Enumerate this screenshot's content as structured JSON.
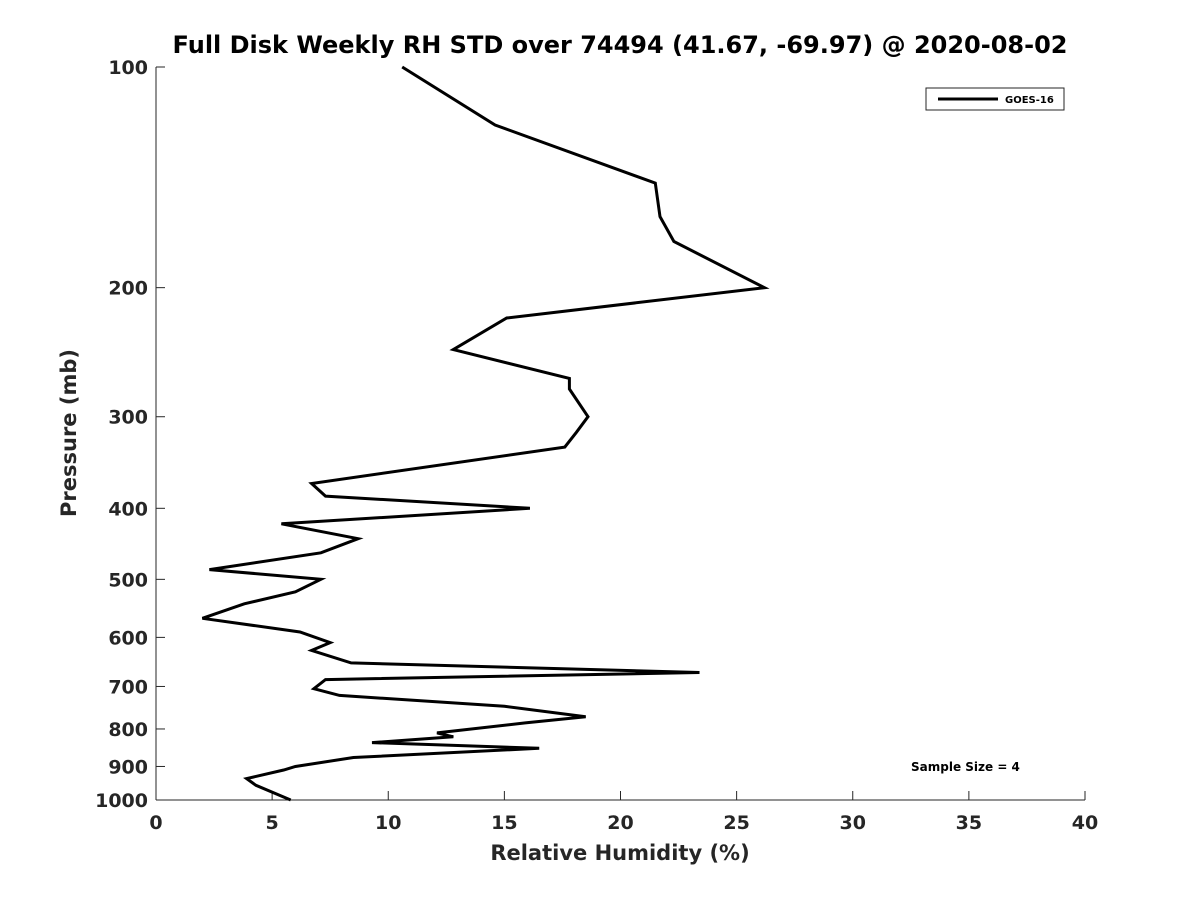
{
  "chart_data": {
    "type": "line",
    "title": "Full Disk Weekly RH STD over 74494 (41.67, -69.97) @ 2020-08-02",
    "xlabel": "Relative Humidity (%)",
    "ylabel": "Pressure (mb)",
    "xlim": [
      0,
      40
    ],
    "ylim": [
      100,
      1000
    ],
    "yscale": "log",
    "yreversed": true,
    "xticks": [
      0,
      5,
      10,
      15,
      20,
      25,
      30,
      35,
      40
    ],
    "xtick_labels": [
      "0",
      "5",
      "10",
      "15",
      "20",
      "25",
      "30",
      "35",
      "40"
    ],
    "yticks": [
      100,
      200,
      300,
      400,
      500,
      600,
      700,
      800,
      900,
      1000
    ],
    "ytick_labels": [
      "100",
      "200",
      "300",
      "400",
      "500",
      "600",
      "700",
      "800",
      "900",
      "1000"
    ],
    "grid": false,
    "legend": {
      "position": "top-right",
      "entries": [
        "GOES-16"
      ]
    },
    "annotation": "Sample Size = 4",
    "series": [
      {
        "name": "GOES-16",
        "color": "#000000",
        "x": [
          10.6,
          14.6,
          21.5,
          21.7,
          22.3,
          26.2,
          15.1,
          12.8,
          17.8,
          17.8,
          18.6,
          18.1,
          17.6,
          6.7,
          7.3,
          16.1,
          5.4,
          8.7,
          7.1,
          2.3,
          7.1,
          6.0,
          3.8,
          2.0,
          6.2,
          7.5,
          6.7,
          8.4,
          23.4,
          7.3,
          6.8,
          7.9,
          15.0,
          18.5,
          15.9,
          12.1,
          12.8,
          9.3,
          16.5,
          8.5,
          6.0,
          5.5,
          3.9,
          4.3,
          5.8
        ],
        "y": [
          100,
          120,
          144,
          160,
          173,
          200,
          220,
          243,
          266,
          275,
          300,
          315,
          330,
          370,
          385,
          400,
          420,
          440,
          460,
          485,
          500,
          520,
          540,
          565,
          590,
          610,
          625,
          650,
          670,
          685,
          705,
          720,
          745,
          770,
          785,
          810,
          820,
          835,
          850,
          875,
          900,
          910,
          935,
          955,
          1000
        ]
      }
    ]
  }
}
